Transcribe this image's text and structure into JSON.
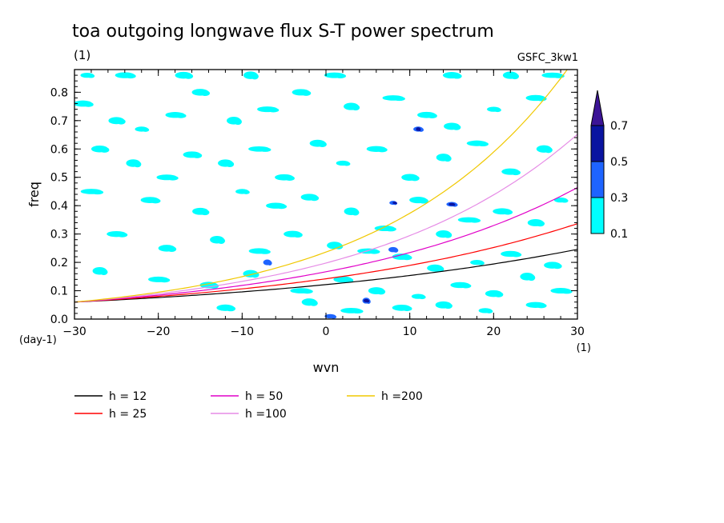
{
  "chart_data": {
    "type": "contour",
    "title": "toa outgoing longwave flux S-T power spectrum",
    "subtitle": "(1)",
    "model_label": "GSFC_3kw1",
    "xlabel": "wvn",
    "ylabel": "freq",
    "x_unit": "(1)",
    "y_unit": "(day-1)",
    "xlim": [
      -30,
      30
    ],
    "ylim": [
      0,
      0.88
    ],
    "x_ticks": [
      -30,
      -20,
      -10,
      0,
      10,
      20,
      30
    ],
    "y_ticks": [
      0.0,
      0.1,
      0.2,
      0.3,
      0.4,
      0.5,
      0.6,
      0.7,
      0.8
    ],
    "y_tick_labels": [
      "0.0",
      "0.1",
      "0.2",
      "0.3",
      "0.4",
      "0.5",
      "0.6",
      "0.7",
      "0.8"
    ],
    "colorbar": {
      "levels": [
        "0.1",
        "0.3",
        "0.5",
        "0.7"
      ],
      "colors": [
        "#00ffff",
        "#1e64ff",
        "#0a14a0",
        "#3c1496"
      ]
    },
    "series": [
      {
        "name": "h = 12",
        "color": "#000000",
        "h": 12
      },
      {
        "name": "h = 25",
        "color": "#ff0000",
        "h": 25
      },
      {
        "name": "h = 50",
        "color": "#e100c8",
        "h": 50
      },
      {
        "name": "h =100",
        "color": "#e68ce6",
        "h": 100
      },
      {
        "name": "h =200",
        "color": "#f0c800",
        "h": 200
      }
    ],
    "level_01_patches": [
      [
        -28.5,
        0.86
      ],
      [
        -24,
        0.86
      ],
      [
        -17,
        0.86
      ],
      [
        -9,
        0.86
      ],
      [
        1,
        0.86
      ],
      [
        15,
        0.86
      ],
      [
        22,
        0.86
      ],
      [
        27,
        0.86
      ],
      [
        -29,
        0.76
      ],
      [
        -25,
        0.7
      ],
      [
        -22,
        0.67
      ],
      [
        -18,
        0.72
      ],
      [
        -15,
        0.8
      ],
      [
        -11,
        0.7
      ],
      [
        -7,
        0.74
      ],
      [
        -3,
        0.8
      ],
      [
        3,
        0.75
      ],
      [
        8,
        0.78
      ],
      [
        12,
        0.72
      ],
      [
        15,
        0.68
      ],
      [
        20,
        0.74
      ],
      [
        25,
        0.78
      ],
      [
        -27,
        0.6
      ],
      [
        -23,
        0.55
      ],
      [
        -19,
        0.5
      ],
      [
        -16,
        0.58
      ],
      [
        -12,
        0.55
      ],
      [
        -8,
        0.6
      ],
      [
        -5,
        0.5
      ],
      [
        -1,
        0.62
      ],
      [
        2,
        0.55
      ],
      [
        6,
        0.6
      ],
      [
        10,
        0.5
      ],
      [
        14,
        0.57
      ],
      [
        18,
        0.62
      ],
      [
        22,
        0.52
      ],
      [
        26,
        0.6
      ],
      [
        -28,
        0.45
      ],
      [
        -21,
        0.42
      ],
      [
        -15,
        0.38
      ],
      [
        -10,
        0.45
      ],
      [
        -6,
        0.4
      ],
      [
        -2,
        0.43
      ],
      [
        3,
        0.38
      ],
      [
        7,
        0.32
      ],
      [
        11,
        0.42
      ],
      [
        14,
        0.3
      ],
      [
        17,
        0.35
      ],
      [
        21,
        0.38
      ],
      [
        25,
        0.34
      ],
      [
        28,
        0.42
      ],
      [
        -25,
        0.3
      ],
      [
        -19,
        0.25
      ],
      [
        -13,
        0.28
      ],
      [
        -8,
        0.24
      ],
      [
        -4,
        0.3
      ],
      [
        1,
        0.26
      ],
      [
        5,
        0.24
      ],
      [
        9,
        0.22
      ],
      [
        13,
        0.18
      ],
      [
        18,
        0.2
      ],
      [
        22,
        0.23
      ],
      [
        27,
        0.19
      ],
      [
        -27,
        0.17
      ],
      [
        -20,
        0.14
      ],
      [
        -14,
        0.12
      ],
      [
        -9,
        0.16
      ],
      [
        -3,
        0.1
      ],
      [
        2,
        0.14
      ],
      [
        6,
        0.1
      ],
      [
        11,
        0.08
      ],
      [
        16,
        0.12
      ],
      [
        20,
        0.09
      ],
      [
        24,
        0.15
      ],
      [
        28,
        0.1
      ],
      [
        -12,
        0.04
      ],
      [
        -2,
        0.06
      ],
      [
        3,
        0.03
      ],
      [
        9,
        0.04
      ],
      [
        14,
        0.05
      ],
      [
        19,
        0.03
      ],
      [
        25,
        0.05
      ]
    ],
    "level_03_patches": [
      [
        8,
        0.41
      ],
      [
        15,
        0.405
      ],
      [
        8,
        0.245
      ],
      [
        4.8,
        0.065
      ],
      [
        0.5,
        0.01
      ],
      [
        11,
        0.67
      ],
      [
        -7,
        0.2
      ]
    ],
    "level_05_patches": [
      [
        8.2,
        0.41
      ],
      [
        15,
        0.405
      ],
      [
        4.8,
        0.065
      ],
      [
        11,
        0.67
      ]
    ]
  }
}
